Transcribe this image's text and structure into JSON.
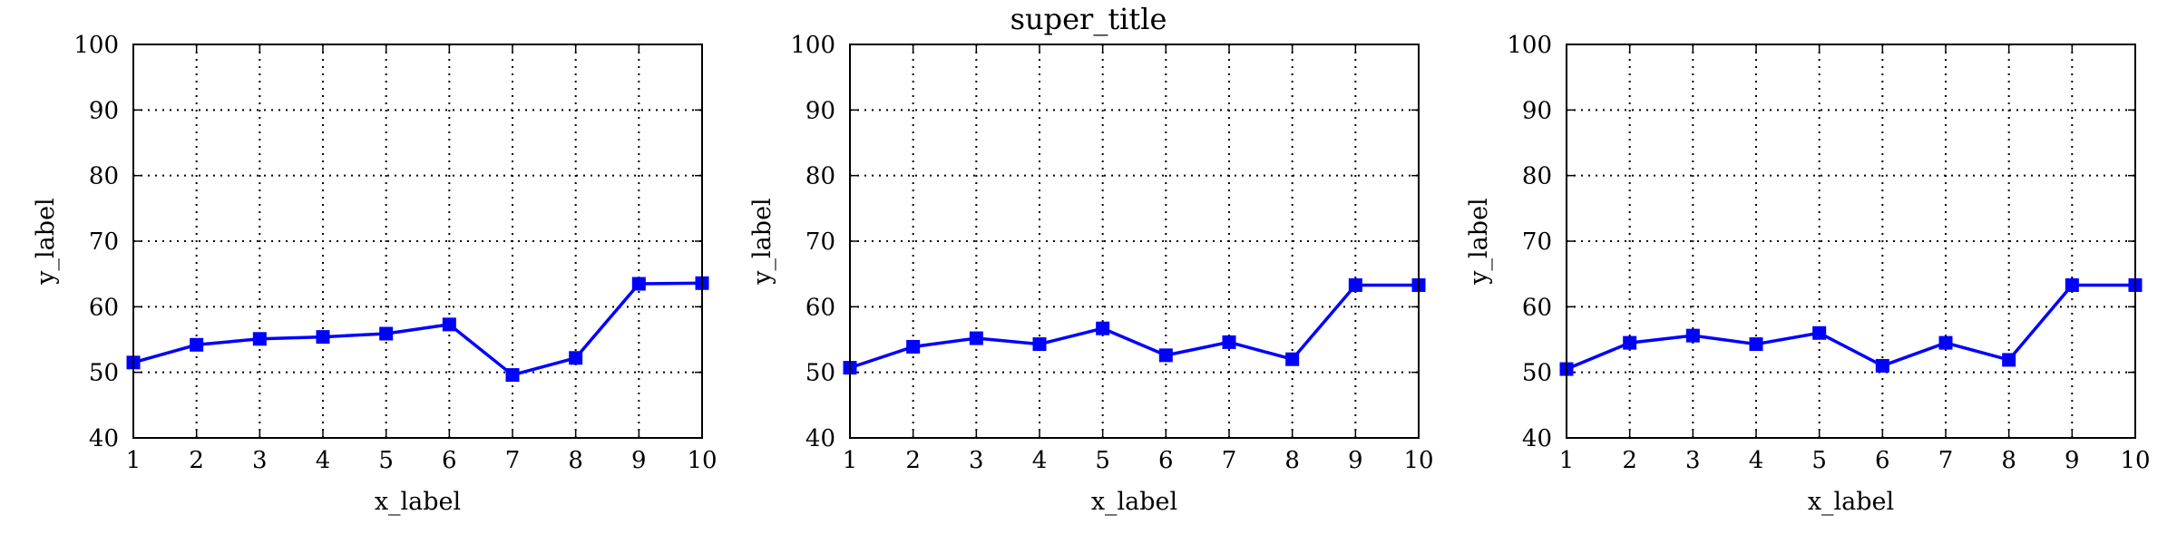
{
  "figure": {
    "super_title": "super_title"
  },
  "chart_data": [
    {
      "type": "line",
      "xlabel": "x_label",
      "ylabel": "y_label",
      "xlim": [
        1,
        10
      ],
      "ylim": [
        40,
        100
      ],
      "xticks": [
        1,
        2,
        3,
        4,
        5,
        6,
        7,
        8,
        9,
        10
      ],
      "yticks": [
        40,
        50,
        60,
        70,
        80,
        90,
        100
      ],
      "grid": true,
      "series_color": "#0000ff",
      "marker": "square",
      "x": [
        1,
        2,
        3,
        4,
        5,
        6,
        7,
        8,
        9,
        10
      ],
      "y": [
        51.5,
        54.2,
        55.1,
        55.4,
        55.9,
        57.3,
        49.6,
        52.2,
        63.5,
        63.6
      ]
    },
    {
      "type": "line",
      "xlabel": "x_label",
      "ylabel": "y_label",
      "xlim": [
        1,
        10
      ],
      "ylim": [
        40,
        100
      ],
      "xticks": [
        1,
        2,
        3,
        4,
        5,
        6,
        7,
        8,
        9,
        10
      ],
      "yticks": [
        40,
        50,
        60,
        70,
        80,
        90,
        100
      ],
      "grid": true,
      "series_color": "#0000ff",
      "marker": "square",
      "x": [
        1,
        2,
        3,
        4,
        5,
        6,
        7,
        8,
        9,
        10
      ],
      "y": [
        50.7,
        53.9,
        55.2,
        54.3,
        56.7,
        52.6,
        54.6,
        52.0,
        63.3,
        63.3
      ]
    },
    {
      "type": "line",
      "xlabel": "x_label",
      "ylabel": "y_label",
      "xlim": [
        1,
        10
      ],
      "ylim": [
        40,
        100
      ],
      "xticks": [
        1,
        2,
        3,
        4,
        5,
        6,
        7,
        8,
        9,
        10
      ],
      "yticks": [
        40,
        50,
        60,
        70,
        80,
        90,
        100
      ],
      "grid": true,
      "series_color": "#0000ff",
      "marker": "square",
      "x": [
        1,
        2,
        3,
        4,
        5,
        6,
        7,
        8,
        9,
        10
      ],
      "y": [
        50.5,
        54.5,
        55.6,
        54.3,
        56.0,
        51.0,
        54.5,
        51.9,
        63.3,
        63.3
      ]
    }
  ]
}
